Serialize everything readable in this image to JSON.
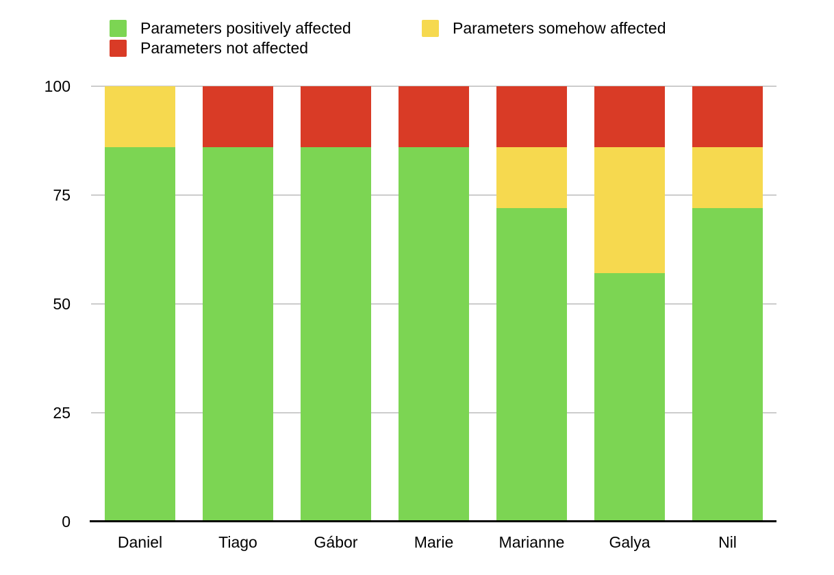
{
  "chart_data": {
    "type": "bar",
    "subtype": "stacked",
    "title": "",
    "xlabel": "",
    "ylabel": "",
    "categories": [
      "Daniel",
      "Tiago",
      "Gábor",
      "Marie",
      "Marianne",
      "Galya",
      "Nil"
    ],
    "series": [
      {
        "name": "Parameters positively affected",
        "color": "#7CD553",
        "values": [
          86,
          86,
          86,
          86,
          72,
          57,
          72
        ]
      },
      {
        "name": "Parameters somehow affected",
        "color": "#F6D94F",
        "values": [
          14,
          0,
          0,
          0,
          14,
          29,
          14
        ]
      },
      {
        "name": "Parameters not affected",
        "color": "#D93B26",
        "values": [
          0,
          14,
          14,
          14,
          14,
          14,
          14
        ]
      }
    ],
    "ylim": [
      0,
      100
    ],
    "yticks": [
      0,
      25,
      50,
      75,
      100
    ],
    "grid": true,
    "legend_position": "top",
    "gridline_color": "#CCCCCC",
    "axis_line_color": "#000000",
    "text_color": "#000000",
    "background_color": "#FFFFFF"
  }
}
